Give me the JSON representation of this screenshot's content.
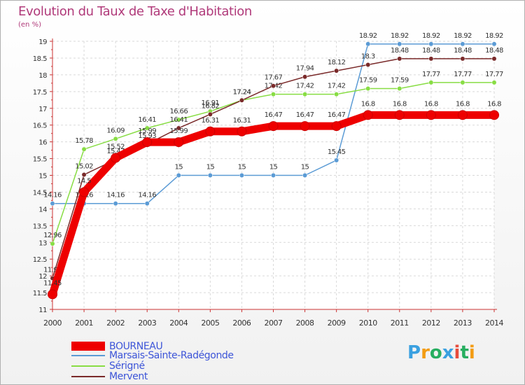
{
  "chart_data": {
    "type": "line",
    "title": "Evolution du Taux de Taxe d'Habitation",
    "subtitle": "(en %)",
    "xlabel": "",
    "ylabel": "",
    "ylim": [
      11,
      19
    ],
    "yticks": [
      "11",
      "11.5",
      "12",
      "12.5",
      "13",
      "13.5",
      "14",
      "14.5",
      "15",
      "15.5",
      "16",
      "16.5",
      "17",
      "17.5",
      "18",
      "18.5",
      "19"
    ],
    "categories": [
      "2000",
      "2001",
      "2002",
      "2003",
      "2004",
      "2005",
      "2006",
      "2007",
      "2008",
      "2009",
      "2010",
      "2011",
      "2012",
      "2013",
      "2014"
    ],
    "grid": true,
    "legend_position": "bottom-left",
    "series": [
      {
        "name": "BOURNEAU",
        "color": "#ee0000",
        "values": [
          11.45,
          14.5,
          15.52,
          15.99,
          15.99,
          16.31,
          16.31,
          16.47,
          16.47,
          16.47,
          16.8,
          16.8,
          16.8,
          16.8,
          16.8
        ],
        "labels": [
          "11.45",
          "14.5",
          "15.52",
          "15.99",
          "15.99",
          "16.31",
          "16.31",
          "16.47",
          "16.47",
          "16.47",
          "16.8",
          "16.8",
          "16.8",
          "16.8",
          "16.8"
        ]
      },
      {
        "name": "Marsais-Sainte-Radégonde",
        "color": "#5b9bd5",
        "values": [
          14.16,
          14.16,
          14.16,
          14.16,
          15,
          15,
          15,
          15,
          15,
          15.45,
          18.92,
          18.92,
          18.92,
          18.92,
          18.92
        ],
        "labels": [
          "14.16",
          "14.16",
          "14.16",
          "14.16",
          "15",
          "15",
          "15",
          "15",
          "15",
          "15.45",
          "18.92",
          "18.92",
          "18.92",
          "18.92",
          "18.92"
        ]
      },
      {
        "name": "Sérigné",
        "color": "#88dd44",
        "values": [
          12.96,
          15.78,
          16.09,
          16.41,
          16.66,
          16.91,
          17.24,
          17.42,
          17.42,
          17.42,
          17.59,
          17.59,
          17.77,
          17.77,
          17.77
        ],
        "labels": [
          "12.96",
          "15.78",
          "16.09",
          "16.41",
          "16.66",
          "16.91",
          "17.24",
          "17.42",
          "17.42",
          "17.42",
          "17.59",
          "17.59",
          "17.77",
          "17.77",
          "17.77"
        ]
      },
      {
        "name": "Mervent",
        "color": "#7a2a2a",
        "values": [
          11.93,
          15.02,
          15.47,
          15.93,
          16.41,
          16.82,
          17.24,
          17.67,
          17.94,
          18.12,
          18.3,
          18.48,
          18.48,
          18.48,
          18.48
        ],
        "labels": [
          "11.93",
          "15.02",
          "15.47",
          "15.93",
          "16.41",
          "16.82",
          "17.24",
          "17.67",
          "17.94",
          "18.12",
          "18.3",
          "18.48",
          "18.48",
          "18.48",
          "18.48"
        ]
      }
    ]
  },
  "brand": {
    "letters": [
      "P",
      "r",
      "o",
      "x",
      "i",
      "t",
      "i"
    ],
    "colors": [
      "#3aa0e0",
      "#f39c12",
      "#27ae60",
      "#3aa0e0",
      "#e74c3c",
      "#27ae60",
      "#f39c12"
    ]
  }
}
